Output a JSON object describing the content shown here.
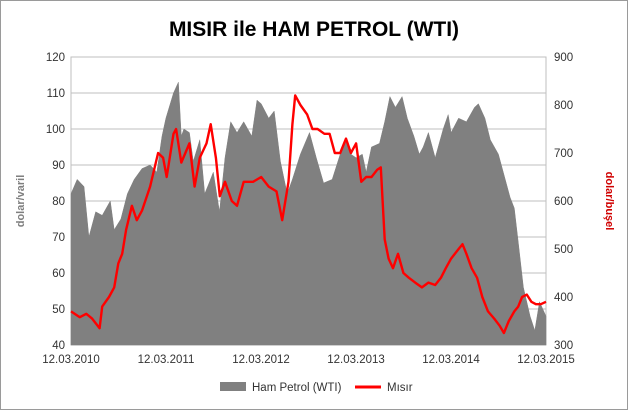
{
  "chart_data": {
    "type": "area+line",
    "title": "MISIR ile HAM PETROL (WTI)",
    "ylabel_left": "dolar/varil",
    "ylabel_right": "dolar/buşel",
    "ylim_left": [
      40,
      120
    ],
    "ylim_right": [
      300,
      900
    ],
    "y_ticks_left": [
      "40",
      "50",
      "60",
      "70",
      "80",
      "90",
      "100",
      "110",
      "120"
    ],
    "y_ticks_right": [
      "300",
      "400",
      "500",
      "600",
      "700",
      "800",
      "900"
    ],
    "x_tick_labels": [
      "12.03.2010",
      "12.03.2011",
      "12.03.2012",
      "12.03.2013",
      "12.03.2014",
      "12.03.2015"
    ],
    "x_range": [
      "2010-03-12",
      "2015-03-12"
    ],
    "grid": true,
    "legend_position": "bottom",
    "series": [
      {
        "name": "Ham Petrol (WTI)",
        "axis": "left",
        "kind": "area",
        "color": "#808080",
        "points": [
          [
            "2010-03-12",
            82
          ],
          [
            "2010-04-05",
            86
          ],
          [
            "2010-05-01",
            84
          ],
          [
            "2010-05-20",
            70
          ],
          [
            "2010-06-15",
            77
          ],
          [
            "2010-07-10",
            76
          ],
          [
            "2010-08-10",
            80
          ],
          [
            "2010-08-25",
            72
          ],
          [
            "2010-09-20",
            75
          ],
          [
            "2010-10-15",
            82
          ],
          [
            "2010-11-10",
            86
          ],
          [
            "2010-12-10",
            89
          ],
          [
            "2011-01-10",
            90
          ],
          [
            "2011-02-05",
            88
          ],
          [
            "2011-02-25",
            98
          ],
          [
            "2011-03-12",
            103
          ],
          [
            "2011-04-10",
            110
          ],
          [
            "2011-04-29",
            113
          ],
          [
            "2011-05-10",
            98
          ],
          [
            "2011-05-20",
            100
          ],
          [
            "2011-06-10",
            99
          ],
          [
            "2011-06-25",
            91
          ],
          [
            "2011-07-20",
            97
          ],
          [
            "2011-08-08",
            82
          ],
          [
            "2011-08-25",
            85
          ],
          [
            "2011-09-10",
            88
          ],
          [
            "2011-10-04",
            77
          ],
          [
            "2011-10-25",
            92
          ],
          [
            "2011-11-16",
            102
          ],
          [
            "2011-12-10",
            99
          ],
          [
            "2012-01-05",
            102
          ],
          [
            "2012-02-05",
            98
          ],
          [
            "2012-02-25",
            108
          ],
          [
            "2012-03-12",
            107
          ],
          [
            "2012-04-10",
            103
          ],
          [
            "2012-05-01",
            105
          ],
          [
            "2012-05-25",
            91
          ],
          [
            "2012-06-20",
            82
          ],
          [
            "2012-07-10",
            86
          ],
          [
            "2012-08-10",
            93
          ],
          [
            "2012-09-14",
            99
          ],
          [
            "2012-10-10",
            92
          ],
          [
            "2012-11-07",
            85
          ],
          [
            "2012-12-10",
            86
          ],
          [
            "2013-01-10",
            93
          ],
          [
            "2013-01-30",
            97
          ],
          [
            "2013-02-20",
            93
          ],
          [
            "2013-03-12",
            92
          ],
          [
            "2013-04-05",
            93
          ],
          [
            "2013-04-20",
            88
          ],
          [
            "2013-05-10",
            95
          ],
          [
            "2013-06-10",
            96
          ],
          [
            "2013-06-30",
            102
          ],
          [
            "2013-07-20",
            109
          ],
          [
            "2013-08-10",
            106
          ],
          [
            "2013-09-05",
            109
          ],
          [
            "2013-09-25",
            103
          ],
          [
            "2013-10-20",
            98
          ],
          [
            "2013-11-10",
            93
          ],
          [
            "2013-11-25",
            95
          ],
          [
            "2013-12-15",
            99
          ],
          [
            "2014-01-10",
            92
          ],
          [
            "2014-02-10",
            100
          ],
          [
            "2014-03-01",
            104
          ],
          [
            "2014-03-12",
            99
          ],
          [
            "2014-04-10",
            103
          ],
          [
            "2014-05-10",
            102
          ],
          [
            "2014-06-10",
            106
          ],
          [
            "2014-06-25",
            107
          ],
          [
            "2014-07-20",
            103
          ],
          [
            "2014-08-10",
            97
          ],
          [
            "2014-09-10",
            93
          ],
          [
            "2014-10-10",
            85
          ],
          [
            "2014-10-25",
            81
          ],
          [
            "2014-11-10",
            78
          ],
          [
            "2014-11-28",
            67
          ],
          [
            "2014-12-15",
            56
          ],
          [
            "2015-01-10",
            48
          ],
          [
            "2015-01-28",
            44
          ],
          [
            "2015-02-15",
            52
          ],
          [
            "2015-03-12",
            48
          ]
        ]
      },
      {
        "name": "Mısır",
        "axis": "right",
        "kind": "line",
        "color": "#ff0000",
        "points": [
          [
            "2010-03-12",
            370
          ],
          [
            "2010-04-15",
            358
          ],
          [
            "2010-05-10",
            365
          ],
          [
            "2010-06-01",
            355
          ],
          [
            "2010-06-30",
            335
          ],
          [
            "2010-07-10",
            380
          ],
          [
            "2010-08-05",
            400
          ],
          [
            "2010-08-25",
            420
          ],
          [
            "2010-09-10",
            470
          ],
          [
            "2010-09-25",
            490
          ],
          [
            "2010-10-10",
            540
          ],
          [
            "2010-11-01",
            590
          ],
          [
            "2010-11-20",
            560
          ],
          [
            "2010-12-10",
            580
          ],
          [
            "2011-01-10",
            630
          ],
          [
            "2011-02-10",
            700
          ],
          [
            "2011-03-01",
            690
          ],
          [
            "2011-03-15",
            650
          ],
          [
            "2011-04-10",
            740
          ],
          [
            "2011-04-20",
            750
          ],
          [
            "2011-05-10",
            680
          ],
          [
            "2011-06-10",
            720
          ],
          [
            "2011-06-30",
            630
          ],
          [
            "2011-07-20",
            690
          ],
          [
            "2011-08-15",
            720
          ],
          [
            "2011-08-31",
            760
          ],
          [
            "2011-09-20",
            690
          ],
          [
            "2011-10-05",
            610
          ],
          [
            "2011-10-25",
            640
          ],
          [
            "2011-11-20",
            600
          ],
          [
            "2011-12-10",
            590
          ],
          [
            "2012-01-05",
            640
          ],
          [
            "2012-02-10",
            640
          ],
          [
            "2012-03-12",
            650
          ],
          [
            "2012-04-10",
            630
          ],
          [
            "2012-05-10",
            620
          ],
          [
            "2012-06-01",
            560
          ],
          [
            "2012-06-25",
            640
          ],
          [
            "2012-07-10",
            760
          ],
          [
            "2012-07-21",
            820
          ],
          [
            "2012-08-10",
            800
          ],
          [
            "2012-09-05",
            780
          ],
          [
            "2012-09-25",
            750
          ],
          [
            "2012-10-15",
            750
          ],
          [
            "2012-11-10",
            740
          ],
          [
            "2012-11-30",
            740
          ],
          [
            "2012-12-20",
            700
          ],
          [
            "2013-01-10",
            700
          ],
          [
            "2013-02-01",
            730
          ],
          [
            "2013-02-20",
            700
          ],
          [
            "2013-03-12",
            720
          ],
          [
            "2013-04-01",
            640
          ],
          [
            "2013-04-20",
            650
          ],
          [
            "2013-05-10",
            650
          ],
          [
            "2013-06-01",
            665
          ],
          [
            "2013-06-15",
            670
          ],
          [
            "2013-06-30",
            520
          ],
          [
            "2013-07-15",
            480
          ],
          [
            "2013-08-01",
            460
          ],
          [
            "2013-08-20",
            490
          ],
          [
            "2013-09-10",
            450
          ],
          [
            "2013-10-01",
            440
          ],
          [
            "2013-10-25",
            430
          ],
          [
            "2013-11-20",
            420
          ],
          [
            "2013-12-15",
            430
          ],
          [
            "2014-01-10",
            425
          ],
          [
            "2014-02-01",
            440
          ],
          [
            "2014-02-20",
            460
          ],
          [
            "2014-03-12",
            480
          ],
          [
            "2014-04-10",
            500
          ],
          [
            "2014-04-25",
            510
          ],
          [
            "2014-05-10",
            490
          ],
          [
            "2014-05-30",
            460
          ],
          [
            "2014-06-20",
            440
          ],
          [
            "2014-07-10",
            400
          ],
          [
            "2014-08-01",
            370
          ],
          [
            "2014-08-25",
            355
          ],
          [
            "2014-09-15",
            340
          ],
          [
            "2014-10-01",
            325
          ],
          [
            "2014-10-20",
            350
          ],
          [
            "2014-11-10",
            370
          ],
          [
            "2014-11-25",
            380
          ],
          [
            "2014-12-10",
            400
          ],
          [
            "2014-12-28",
            405
          ],
          [
            "2015-01-15",
            390
          ],
          [
            "2015-02-01",
            385
          ],
          [
            "2015-02-20",
            385
          ],
          [
            "2015-03-12",
            390
          ]
        ]
      }
    ]
  }
}
